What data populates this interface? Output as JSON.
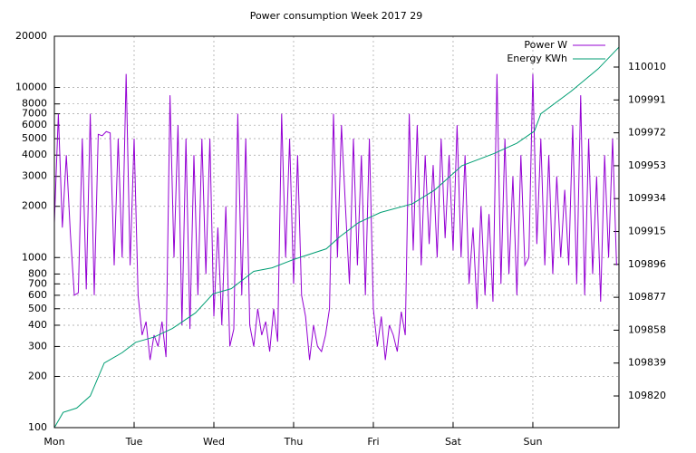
{
  "chart_data": {
    "type": "line",
    "title": "Power consumption Week 2017 29",
    "xlim": [
      0,
      7.08
    ],
    "xticks": [
      {
        "value": 0,
        "label": "Mon"
      },
      {
        "value": 1,
        "label": "Tue"
      },
      {
        "value": 2,
        "label": "Wed"
      },
      {
        "value": 3,
        "label": "Thu"
      },
      {
        "value": 4,
        "label": "Fri"
      },
      {
        "value": 5,
        "label": "Sat"
      },
      {
        "value": 6,
        "label": "Sun"
      }
    ],
    "ylim": [
      100,
      20000
    ],
    "log_y": true,
    "yticks": [
      100,
      200,
      300,
      400,
      500,
      600,
      700,
      800,
      1000,
      2000,
      3000,
      4000,
      5000,
      6000,
      7000,
      8000,
      10000,
      20000
    ],
    "y2lim": [
      109801.7,
      110027.8
    ],
    "y2ticks": [
      109820,
      109839,
      109858,
      109877,
      109896,
      109915,
      109934,
      109953,
      109972,
      109991,
      110010
    ],
    "grid": true,
    "legend": "top-right",
    "series": [
      {
        "name": "Power W",
        "color": "#9400d3",
        "x": [
          0,
          0.05,
          0.1,
          0.15,
          0.2,
          0.25,
          0.3,
          0.35,
          0.4,
          0.45,
          0.5,
          0.55,
          0.6,
          0.65,
          0.7,
          0.75,
          0.8,
          0.85,
          0.9,
          0.95,
          1,
          1.05,
          1.1,
          1.15,
          1.2,
          1.25,
          1.3,
          1.35,
          1.4,
          1.45,
          1.5,
          1.55,
          1.6,
          1.65,
          1.7,
          1.75,
          1.8,
          1.85,
          1.9,
          1.95,
          2,
          2.05,
          2.1,
          2.15,
          2.2,
          2.25,
          2.3,
          2.35,
          2.4,
          2.45,
          2.5,
          2.55,
          2.6,
          2.65,
          2.7,
          2.75,
          2.8,
          2.85,
          2.9,
          2.95,
          3,
          3.05,
          3.1,
          3.15,
          3.2,
          3.25,
          3.3,
          3.35,
          3.4,
          3.45,
          3.5,
          3.55,
          3.6,
          3.65,
          3.7,
          3.75,
          3.8,
          3.85,
          3.9,
          3.95,
          4,
          4.05,
          4.1,
          4.15,
          4.2,
          4.25,
          4.3,
          4.35,
          4.4,
          4.45,
          4.5,
          4.55,
          4.6,
          4.65,
          4.7,
          4.75,
          4.8,
          4.85,
          4.9,
          4.95,
          5,
          5.05,
          5.1,
          5.15,
          5.2,
          5.25,
          5.3,
          5.35,
          5.4,
          5.45,
          5.5,
          5.55,
          5.6,
          5.65,
          5.7,
          5.75,
          5.8,
          5.85,
          5.9,
          5.95,
          6,
          6.05,
          6.1,
          6.15,
          6.2,
          6.25,
          6.3,
          6.35,
          6.4,
          6.45,
          6.5,
          6.55,
          6.6,
          6.65,
          6.7,
          6.75,
          6.8,
          6.85,
          6.9,
          6.95,
          7,
          7.05
        ],
        "values": [
          1600,
          7000,
          1500,
          4000,
          1400,
          600,
          620,
          5000,
          650,
          7000,
          600,
          5300,
          5200,
          5500,
          5400,
          900,
          5000,
          1000,
          12000,
          900,
          5000,
          600,
          350,
          420,
          250,
          350,
          300,
          420,
          260,
          9000,
          1000,
          6000,
          400,
          5000,
          380,
          4000,
          600,
          5000,
          800,
          5000,
          450,
          1500,
          400,
          2000,
          300,
          380,
          7000,
          600,
          5000,
          400,
          300,
          500,
          350,
          420,
          280,
          500,
          320,
          7000,
          1000,
          5000,
          700,
          4000,
          600,
          450,
          250,
          400,
          300,
          280,
          350,
          500,
          7000,
          1000,
          6000,
          2000,
          700,
          5000,
          900,
          4000,
          600,
          5000,
          500,
          300,
          450,
          250,
          400,
          350,
          280,
          480,
          350,
          7000,
          1100,
          6000,
          900,
          4000,
          1200,
          3500,
          1000,
          5000,
          1300,
          4000,
          1100,
          6000,
          1000,
          4000,
          700,
          1500,
          500,
          2000,
          600,
          1800,
          550,
          12000,
          700,
          5000,
          800,
          3000,
          600,
          4000,
          900,
          1000,
          12000,
          1200,
          5000,
          900,
          4000,
          800,
          3000,
          1000,
          2500,
          900,
          6000,
          700,
          9000,
          600,
          5000,
          800,
          3000,
          550,
          4000,
          1000,
          5000,
          900
        ]
      },
      {
        "name": "Energy KWh",
        "color": "#009e73",
        "axis": "y2",
        "x": [
          0,
          0.11,
          0.28,
          0.45,
          0.625,
          0.85,
          1.02,
          1.25,
          1.48,
          1.77,
          1.99,
          2.22,
          2.5,
          2.73,
          3.01,
          3.41,
          3.58,
          3.81,
          4.09,
          4.49,
          4.77,
          5.11,
          5.51,
          5.8,
          6.02,
          6.1,
          6.48,
          6.82,
          7.08
        ],
        "values": [
          109801.7,
          109810.5,
          109813,
          109820,
          109839,
          109845,
          109851,
          109854,
          109859,
          109868,
          109879,
          109882,
          109892,
          109894,
          109899,
          109905,
          109912,
          109920,
          109926,
          109931,
          109939,
          109953,
          109960,
          109966,
          109973,
          109983,
          109996,
          110009,
          110021.5
        ]
      }
    ]
  }
}
